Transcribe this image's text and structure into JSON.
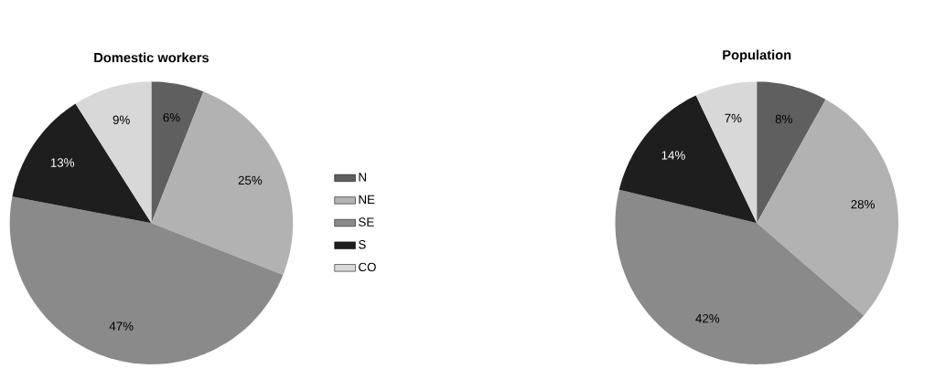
{
  "chart_data": [
    {
      "type": "pie",
      "title": "Domestic workers",
      "categories": [
        "N",
        "NE",
        "SE",
        "S",
        "CO"
      ],
      "values": [
        6,
        25,
        47,
        13,
        9
      ],
      "value_labels": [
        "6%",
        "25%",
        "47%",
        "13%",
        "9%"
      ],
      "colors": [
        "#5f5f5f",
        "#b2b2b2",
        "#8a8a8a",
        "#1e1e1e",
        "#d8d8d8"
      ],
      "legend": "right"
    },
    {
      "type": "pie",
      "title": "Population",
      "categories": [
        null,
        null,
        null,
        null,
        null
      ],
      "values": [
        8,
        28,
        42,
        14,
        7
      ],
      "value_labels": [
        "8%",
        "28%",
        "42%",
        "14%",
        "7%"
      ],
      "colors": [
        "#5f5f5f",
        "#b2b2b2",
        "#8a8a8a",
        "#1e1e1e",
        "#d8d8d8"
      ]
    }
  ]
}
